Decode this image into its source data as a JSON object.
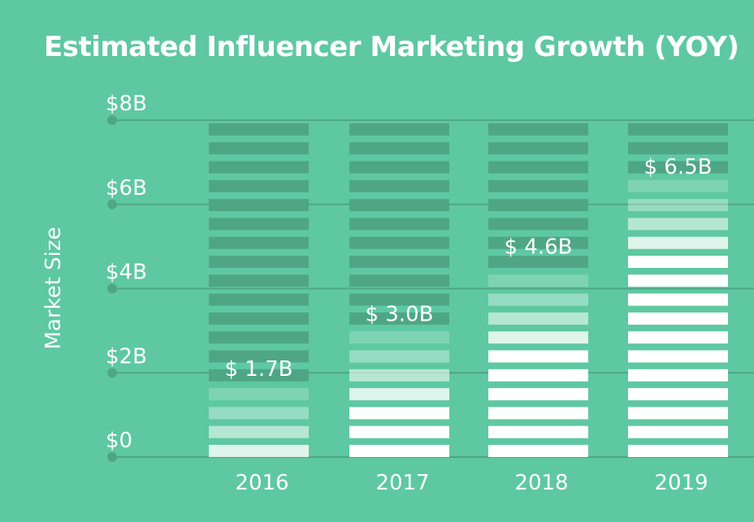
{
  "chart_data": {
    "type": "bar",
    "title": "Estimated Influencer Marketing Growth (YOY)",
    "ylabel": "Market Size",
    "categories": [
      "2016",
      "2017",
      "2018",
      "2019"
    ],
    "values": [
      1.7,
      3.0,
      4.6,
      6.5
    ],
    "value_labels": [
      "$ 1.7B",
      "$ 3.0B",
      "$ 4.6B",
      "$ 6.5B"
    ],
    "yticks": [
      "$0",
      "$2B",
      "$4B",
      "$6B",
      "$8B"
    ],
    "ylim": [
      0,
      8
    ],
    "grid": true,
    "colors": {
      "background": "#5ec8a3",
      "empty_stripe": "#4fa685",
      "filled_stripe": "#ffffff",
      "gridline": "#4fa685"
    }
  }
}
